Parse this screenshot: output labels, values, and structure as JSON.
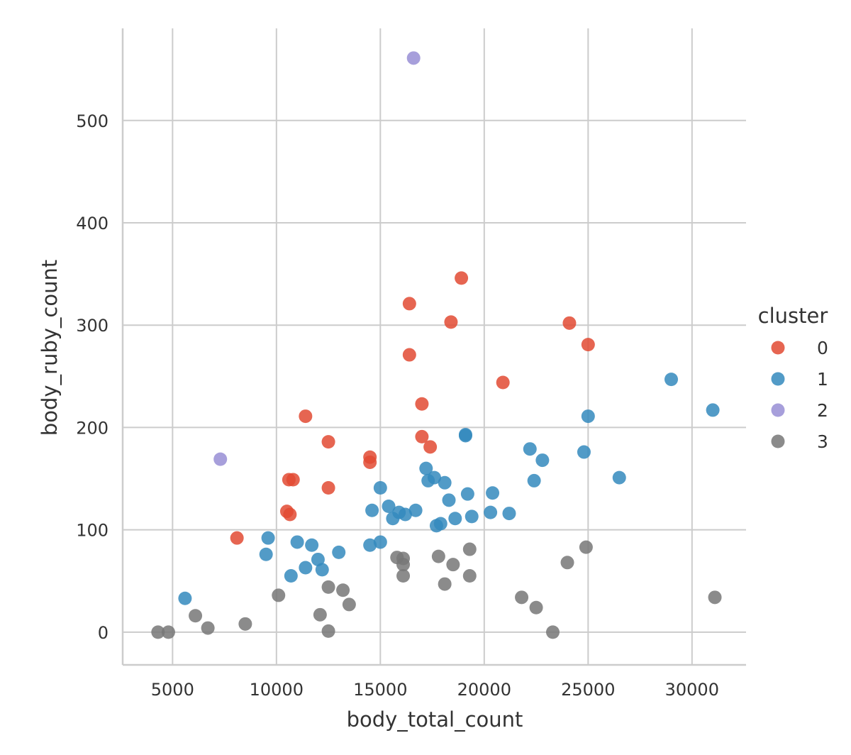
{
  "chart_data": {
    "type": "scatter",
    "xlabel": "body_total_count",
    "ylabel": "body_ruby_count",
    "xlim": [
      2600,
      32600
    ],
    "ylim": [
      -32,
      590
    ],
    "x_ticks": [
      5000,
      10000,
      15000,
      20000,
      25000,
      30000
    ],
    "x_tick_labels": [
      "5000",
      "10000",
      "15000",
      "20000",
      "25000",
      "30000"
    ],
    "y_ticks": [
      0,
      100,
      200,
      300,
      400,
      500
    ],
    "y_tick_labels": [
      "0",
      "100",
      "200",
      "300",
      "400",
      "500"
    ],
    "grid": true,
    "legend": {
      "title": "cluster",
      "position": "right"
    },
    "series": [
      {
        "name": "0",
        "color": "#e24a33",
        "points": [
          [
            8100,
            92
          ],
          [
            10500,
            118
          ],
          [
            10600,
            149
          ],
          [
            10650,
            115
          ],
          [
            10800,
            149
          ],
          [
            11400,
            211
          ],
          [
            12500,
            186
          ],
          [
            12500,
            141
          ],
          [
            14500,
            171
          ],
          [
            14500,
            166
          ],
          [
            16400,
            321
          ],
          [
            16400,
            271
          ],
          [
            17000,
            223
          ],
          [
            17000,
            191
          ],
          [
            17400,
            181
          ],
          [
            18400,
            303
          ],
          [
            18900,
            346
          ],
          [
            20900,
            244
          ],
          [
            24100,
            302
          ],
          [
            25000,
            281
          ]
        ]
      },
      {
        "name": "1",
        "color": "#348abd",
        "points": [
          [
            5600,
            33
          ],
          [
            9500,
            76
          ],
          [
            9600,
            92
          ],
          [
            10700,
            55
          ],
          [
            11000,
            88
          ],
          [
            11400,
            63
          ],
          [
            11700,
            85
          ],
          [
            12000,
            71
          ],
          [
            12200,
            61
          ],
          [
            13000,
            78
          ],
          [
            14500,
            85
          ],
          [
            14600,
            119
          ],
          [
            15000,
            88
          ],
          [
            15000,
            141
          ],
          [
            15400,
            123
          ],
          [
            15600,
            111
          ],
          [
            15900,
            117
          ],
          [
            16200,
            115
          ],
          [
            16700,
            119
          ],
          [
            17200,
            160
          ],
          [
            17300,
            148
          ],
          [
            17600,
            151
          ],
          [
            17700,
            104
          ],
          [
            17900,
            106
          ],
          [
            18100,
            146
          ],
          [
            18300,
            129
          ],
          [
            18600,
            111
          ],
          [
            19100,
            193
          ],
          [
            19100,
            192
          ],
          [
            19200,
            135
          ],
          [
            19400,
            113
          ],
          [
            20300,
            117
          ],
          [
            20400,
            136
          ],
          [
            21200,
            116
          ],
          [
            22200,
            179
          ],
          [
            22400,
            148
          ],
          [
            22800,
            168
          ],
          [
            24800,
            176
          ],
          [
            25000,
            211
          ],
          [
            26500,
            151
          ],
          [
            29000,
            247
          ],
          [
            31000,
            217
          ]
        ]
      },
      {
        "name": "2",
        "color": "#988ed5",
        "points": [
          [
            7300,
            169
          ],
          [
            16600,
            561
          ]
        ]
      },
      {
        "name": "3",
        "color": "#777777",
        "points": [
          [
            4300,
            0
          ],
          [
            4800,
            0
          ],
          [
            6100,
            16
          ],
          [
            6700,
            4
          ],
          [
            8500,
            8
          ],
          [
            10100,
            36
          ],
          [
            12100,
            17
          ],
          [
            12500,
            44
          ],
          [
            12500,
            1
          ],
          [
            13200,
            41
          ],
          [
            13500,
            27
          ],
          [
            15800,
            73
          ],
          [
            16100,
            72
          ],
          [
            16100,
            66
          ],
          [
            16100,
            55
          ],
          [
            17800,
            74
          ],
          [
            18100,
            47
          ],
          [
            18500,
            66
          ],
          [
            19300,
            81
          ],
          [
            19300,
            55
          ],
          [
            21800,
            34
          ],
          [
            22500,
            24
          ],
          [
            23300,
            0
          ],
          [
            24000,
            68
          ],
          [
            24900,
            83
          ],
          [
            31100,
            34
          ]
        ]
      }
    ]
  }
}
